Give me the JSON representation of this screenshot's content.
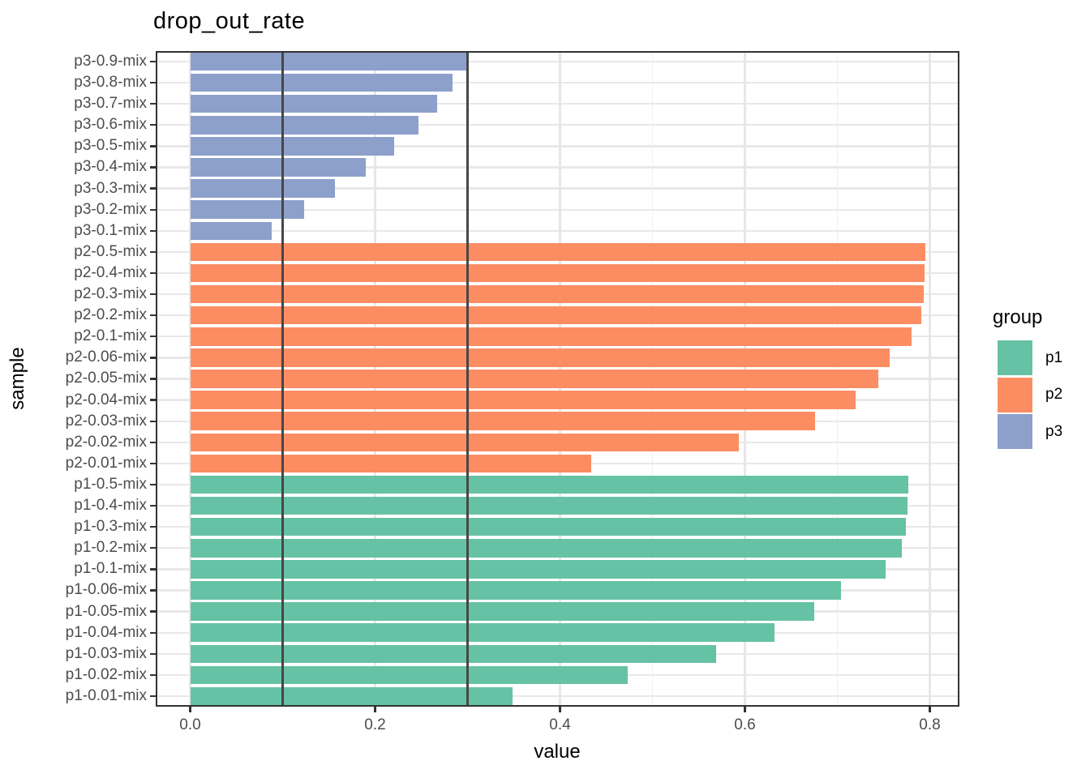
{
  "title": "drop_out_rate",
  "x_axis": {
    "label": "value",
    "tick_labels": [
      "0.0",
      "0.2",
      "0.4",
      "0.6",
      "0.8"
    ]
  },
  "y_axis": {
    "label": "sample"
  },
  "legend": {
    "title": "group",
    "entries": [
      {
        "label": "p1",
        "color": "#66c2a5"
      },
      {
        "label": "p2",
        "color": "#fc8d62"
      },
      {
        "label": "p3",
        "color": "#8da0cb"
      }
    ]
  },
  "chart_data": {
    "type": "bar",
    "orientation": "horizontal",
    "title": "drop_out_rate",
    "xlabel": "value",
    "ylabel": "sample",
    "xlim": [
      -0.04,
      0.835
    ],
    "x_ticks": [
      0.0,
      0.2,
      0.4,
      0.6,
      0.8
    ],
    "x_minor_gridlines": [
      0.1,
      0.3,
      0.5,
      0.7
    ],
    "reference_lines_x": [
      0.1,
      0.3
    ],
    "grid": true,
    "legend_position": "right",
    "series_color_map": {
      "p1": "#66c2a5",
      "p2": "#fc8d62",
      "p3": "#8da0cb"
    },
    "bars": [
      {
        "category": "p3-0.9-mix",
        "group": "p3",
        "value": 0.299
      },
      {
        "category": "p3-0.8-mix",
        "group": "p3",
        "value": 0.284
      },
      {
        "category": "p3-0.7-mix",
        "group": "p3",
        "value": 0.267
      },
      {
        "category": "p3-0.6-mix",
        "group": "p3",
        "value": 0.247
      },
      {
        "category": "p3-0.5-mix",
        "group": "p3",
        "value": 0.221
      },
      {
        "category": "p3-0.4-mix",
        "group": "p3",
        "value": 0.19
      },
      {
        "category": "p3-0.3-mix",
        "group": "p3",
        "value": 0.157
      },
      {
        "category": "p3-0.2-mix",
        "group": "p3",
        "value": 0.123
      },
      {
        "category": "p3-0.1-mix",
        "group": "p3",
        "value": 0.088
      },
      {
        "category": "p2-0.5-mix",
        "group": "p2",
        "value": 0.795
      },
      {
        "category": "p2-0.4-mix",
        "group": "p2",
        "value": 0.794
      },
      {
        "category": "p2-0.3-mix",
        "group": "p2",
        "value": 0.793
      },
      {
        "category": "p2-0.2-mix",
        "group": "p2",
        "value": 0.791
      },
      {
        "category": "p2-0.1-mix",
        "group": "p2",
        "value": 0.78
      },
      {
        "category": "p2-0.06-mix",
        "group": "p2",
        "value": 0.757
      },
      {
        "category": "p2-0.05-mix",
        "group": "p2",
        "value": 0.744
      },
      {
        "category": "p2-0.04-mix",
        "group": "p2",
        "value": 0.72
      },
      {
        "category": "p2-0.03-mix",
        "group": "p2",
        "value": 0.676
      },
      {
        "category": "p2-0.02-mix",
        "group": "p2",
        "value": 0.593
      },
      {
        "category": "p2-0.01-mix",
        "group": "p2",
        "value": 0.434
      },
      {
        "category": "p1-0.5-mix",
        "group": "p1",
        "value": 0.777
      },
      {
        "category": "p1-0.4-mix",
        "group": "p1",
        "value": 0.776
      },
      {
        "category": "p1-0.3-mix",
        "group": "p1",
        "value": 0.774
      },
      {
        "category": "p1-0.2-mix",
        "group": "p1",
        "value": 0.77
      },
      {
        "category": "p1-0.1-mix",
        "group": "p1",
        "value": 0.752
      },
      {
        "category": "p1-0.06-mix",
        "group": "p1",
        "value": 0.704
      },
      {
        "category": "p1-0.05-mix",
        "group": "p1",
        "value": 0.675
      },
      {
        "category": "p1-0.04-mix",
        "group": "p1",
        "value": 0.632
      },
      {
        "category": "p1-0.03-mix",
        "group": "p1",
        "value": 0.569
      },
      {
        "category": "p1-0.02-mix",
        "group": "p1",
        "value": 0.473
      },
      {
        "category": "p1-0.01-mix",
        "group": "p1",
        "value": 0.349
      }
    ]
  }
}
